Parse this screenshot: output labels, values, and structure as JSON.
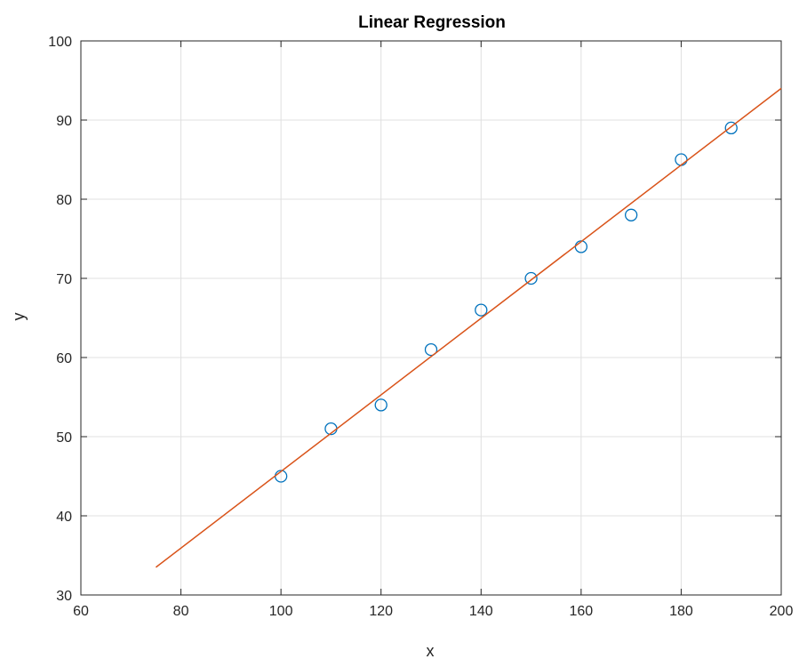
{
  "chart_data": {
    "type": "scatter",
    "title": "Linear Regression",
    "xlabel": "x",
    "ylabel": "y",
    "xlim": [
      60,
      200
    ],
    "ylim": [
      30,
      100
    ],
    "xticks": [
      "60",
      "80",
      "100",
      "120",
      "140",
      "160",
      "180",
      "200"
    ],
    "yticks": [
      "30",
      "40",
      "50",
      "60",
      "70",
      "80",
      "90",
      "100"
    ],
    "grid": true,
    "series": [
      {
        "kind": "markers",
        "marker": "circle",
        "color": "#0072BD",
        "x": [
          100,
          110,
          120,
          130,
          140,
          150,
          160,
          170,
          180,
          190
        ],
        "y": [
          45,
          51,
          54,
          61,
          66,
          70,
          74,
          78,
          85,
          89
        ]
      },
      {
        "kind": "line",
        "color": "#D95319",
        "x": [
          75,
          200
        ],
        "y": [
          33.5,
          94
        ]
      }
    ]
  }
}
